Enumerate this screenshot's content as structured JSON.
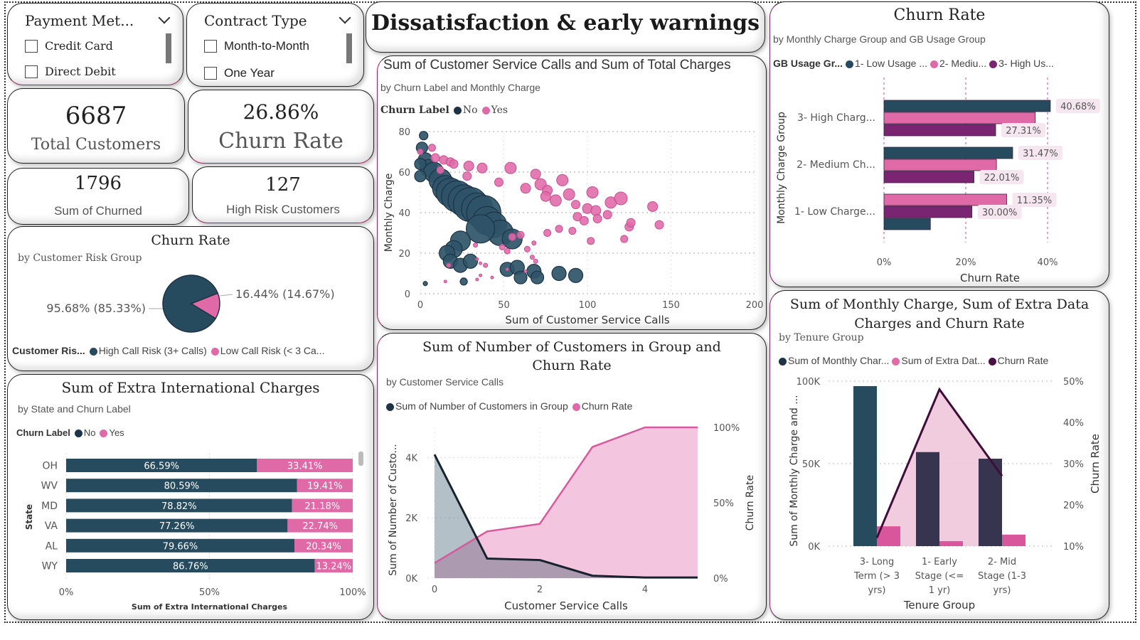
{
  "header": {
    "title": "Dissatisfaction & early warnings"
  },
  "colors": {
    "no": "#274b5e",
    "yes": "#e06aa8",
    "high": "#7a2472",
    "dark": "#1e3345",
    "accent": "#a0245e"
  },
  "slicers": [
    {
      "title": "Payment Met...",
      "items": [
        "Credit Card",
        "Direct Debit"
      ]
    },
    {
      "title": "Contract Type",
      "items": [
        "Month-to-Month",
        "One Year"
      ]
    }
  ],
  "kpis": {
    "total_customers": {
      "value": "6687",
      "label": "Total Customers"
    },
    "churn_rate": {
      "value": "26.86%",
      "label": "Churn Rate"
    },
    "sum_churned": {
      "value": "1796",
      "label": "Sum of Churned"
    },
    "high_risk": {
      "value": "127",
      "label": "High Risk Customers"
    }
  },
  "pie": {
    "title": "Churn Rate",
    "subtitle": "by Customer Risk Group",
    "legend_title": "Customer Ris...",
    "legend": [
      "High Call Risk (3+ Calls)",
      "Low Call Risk (< 3 Ca..."
    ],
    "label_left": "95.68% (85.33%)",
    "label_right": "16.44% (14.67%)"
  },
  "scatter": {
    "title": "Sum of Customer Service Calls and Sum of Total Charges",
    "subtitle": "by Churn Label and Monthly Charge",
    "legend_title": "Churn Label",
    "legend": [
      "No",
      "Yes"
    ],
    "xlabel": "Sum of Customer Service Calls",
    "ylabel": "Monthly Charge",
    "xticks": [
      "0",
      "50",
      "100",
      "150",
      "200"
    ],
    "yticks": [
      "0",
      "20",
      "40",
      "60",
      "80"
    ]
  },
  "state_bar": {
    "title": "Sum of Extra International Charges",
    "subtitle": "by State and Churn Label",
    "legend_title": "Churn Label",
    "legend": [
      "No",
      "Yes"
    ],
    "ylabel": "State",
    "xlabel": "Sum of Extra International Charges",
    "xticks": [
      "0%",
      "50%",
      "100%"
    ]
  },
  "line_area": {
    "title": "Sum of Number of Customers in Group and Churn Rate",
    "subtitle": "by Customer Service Calls",
    "legend": [
      "Sum of Number of Customers in Group",
      "Churn Rate"
    ],
    "xlabel": "Customer Service Calls",
    "ylabel": "Sum of Number of Custo...",
    "y2label": "Churn Rate",
    "xticks": [
      "0",
      "2",
      "4"
    ],
    "yticks": [
      "0K",
      "2K",
      "4K"
    ],
    "y2ticks": [
      "0%",
      "50%",
      "100%"
    ]
  },
  "group_bar": {
    "title": "Churn Rate",
    "subtitle": "by Monthly Charge Group and GB Usage Group",
    "legend_title": "GB Usage Gr...",
    "legend": [
      "1- Low Usage ...",
      "2- Mediu...",
      "3- High Us..."
    ],
    "ylabel": "Monthly Charge Group",
    "xlabel": "Churn Rate",
    "xticks": [
      "0%",
      "20%",
      "40%"
    ]
  },
  "combo": {
    "title": "Sum of Monthly Charge, Sum of Extra Data Charges and Churn Rate",
    "subtitle": "by Tenure Group",
    "legend": [
      "Sum of Monthly Char...",
      "Sum of Extra Dat...",
      "Churn Rate"
    ],
    "xlabel": "Tenure Group",
    "ylabel": "Sum of Monthly Charge and ...",
    "y2label": "Churn Rate",
    "yticks": [
      "0K",
      "50K",
      "100K"
    ],
    "y2ticks": [
      "10%",
      "20%",
      "30%",
      "40%",
      "50%"
    ]
  },
  "chart_data": [
    {
      "type": "pie",
      "title": "Churn Rate",
      "subtitle": "by Customer Risk Group",
      "categories": [
        "High Call Risk (3+ Calls)",
        "Low Call Risk (< 3 Calls)"
      ],
      "values": [
        95.68,
        16.44
      ],
      "share_percent": [
        85.33,
        14.67
      ],
      "legend_position": "bottom"
    },
    {
      "type": "scatter",
      "title": "Sum of Customer Service Calls and Sum of Total Charges",
      "xlabel": "Sum of Customer Service Calls",
      "ylabel": "Monthly Charge",
      "xlim": [
        0,
        200
      ],
      "ylim": [
        0,
        80
      ],
      "series": [
        {
          "name": "No",
          "points": [
            [
              2,
              78,
              6
            ],
            [
              1,
              72,
              8
            ],
            [
              3,
              66,
              10
            ],
            [
              5,
              62,
              12
            ],
            [
              8,
              60,
              14
            ],
            [
              12,
              56,
              16
            ],
            [
              15,
              52,
              18
            ],
            [
              18,
              50,
              20
            ],
            [
              22,
              48,
              22
            ],
            [
              26,
              46,
              22
            ],
            [
              30,
              44,
              24
            ],
            [
              34,
              42,
              22
            ],
            [
              38,
              40,
              24
            ],
            [
              40,
              36,
              20
            ],
            [
              44,
              34,
              18
            ],
            [
              48,
              30,
              18
            ],
            [
              55,
              27,
              14
            ],
            [
              36,
              32,
              20
            ],
            [
              24,
              26,
              14
            ],
            [
              20,
              22,
              12
            ],
            [
              16,
              20,
              11
            ],
            [
              18,
              16,
              10
            ],
            [
              24,
              14,
              10
            ],
            [
              30,
              16,
              10
            ],
            [
              52,
              12,
              10
            ],
            [
              58,
              13,
              10
            ],
            [
              60,
              8,
              9
            ],
            [
              68,
              11,
              10
            ],
            [
              70,
              8,
              9
            ],
            [
              83,
              10,
              10
            ],
            [
              93,
              9,
              10
            ],
            [
              26,
              6,
              5
            ],
            [
              3,
              5,
              3
            ],
            [
              0,
              64,
              8
            ],
            [
              0,
              58,
              8
            ]
          ]
        },
        {
          "name": "Yes",
          "points": [
            [
              0,
              70,
              4
            ],
            [
              7,
              72,
              5
            ],
            [
              9,
              67,
              6
            ],
            [
              14,
              66,
              6
            ],
            [
              18,
              65,
              6
            ],
            [
              20,
              64,
              6
            ],
            [
              12,
              61,
              5
            ],
            [
              29,
              63,
              7
            ],
            [
              37,
              62,
              7
            ],
            [
              28,
              58,
              6
            ],
            [
              54,
              62,
              8
            ],
            [
              47,
              55,
              6
            ],
            [
              63,
              52,
              7
            ],
            [
              69,
              59,
              7
            ],
            [
              72,
              54,
              8
            ],
            [
              76,
              51,
              7
            ],
            [
              75,
              48,
              7
            ],
            [
              81,
              46,
              8
            ],
            [
              85,
              56,
              8
            ],
            [
              89,
              49,
              8
            ],
            [
              93,
              44,
              6
            ],
            [
              94,
              38,
              6
            ],
            [
              98,
              36,
              6
            ],
            [
              100,
              42,
              7
            ],
            [
              105,
              41,
              7
            ],
            [
              103,
              50,
              8
            ],
            [
              106,
              37,
              6
            ],
            [
              112,
              39,
              6
            ],
            [
              114,
              45,
              8
            ],
            [
              120,
              47,
              9
            ],
            [
              122,
              27,
              5
            ],
            [
              125,
              33,
              6
            ],
            [
              126,
              35,
              6
            ],
            [
              139,
              43,
              7
            ],
            [
              143,
              34,
              6
            ],
            [
              102,
              26,
              5
            ],
            [
              91,
              31,
              5
            ],
            [
              83,
              32,
              5
            ],
            [
              76,
              30,
              5
            ],
            [
              60,
              29,
              5
            ],
            [
              55,
              28,
              5
            ],
            [
              49,
              23,
              4
            ],
            [
              52,
              21,
              4
            ],
            [
              64,
              22,
              4
            ],
            [
              68,
              25,
              3
            ],
            [
              67,
              18,
              3
            ],
            [
              69,
              16,
              3
            ],
            [
              39,
              14,
              3
            ],
            [
              34,
              17,
              2
            ],
            [
              36,
              15,
              2
            ],
            [
              43,
              8,
              2
            ],
            [
              36,
              9,
              2
            ],
            [
              34,
              7,
              2
            ],
            [
              15,
              6,
              2
            ],
            [
              17,
              14,
              3
            ],
            [
              52,
              12,
              2
            ],
            [
              63,
              11,
              2
            ],
            [
              33,
              24,
              3
            ]
          ]
        }
      ],
      "legend_position": "top-left"
    },
    {
      "type": "bar",
      "orientation": "horizontal-stacked-100",
      "title": "Sum of Extra International Charges",
      "subtitle": "by State and Churn Label",
      "categories": [
        "OH",
        "WV",
        "MD",
        "VA",
        "AL",
        "WY"
      ],
      "series": [
        {
          "name": "No",
          "values": [
            66.59,
            80.59,
            78.82,
            77.26,
            79.66,
            86.76
          ]
        },
        {
          "name": "Yes",
          "values": [
            33.41,
            19.41,
            21.18,
            22.74,
            20.34,
            13.24
          ]
        }
      ],
      "xlabel": "Sum of Extra International Charges",
      "ylabel": "State",
      "xlim": [
        0,
        100
      ],
      "legend_position": "top-left"
    },
    {
      "type": "area",
      "title": "Sum of Number of Customers in Group and Churn Rate",
      "subtitle": "by Customer Service Calls",
      "x": [
        0,
        1,
        2,
        3,
        4,
        5
      ],
      "series": [
        {
          "name": "Sum of Number of Customers in Group",
          "axis": "left",
          "values": [
            4100,
            650,
            600,
            80,
            20,
            20
          ]
        },
        {
          "name": "Churn Rate",
          "axis": "right",
          "values": [
            10,
            31,
            36,
            87,
            100,
            100
          ]
        }
      ],
      "xlabel": "Customer Service Calls",
      "ylabel": "Sum of Number of Customers in Group",
      "y2label": "Churn Rate",
      "ylim": [
        0,
        5000
      ],
      "y2lim": [
        0,
        100
      ],
      "legend_position": "top-left"
    },
    {
      "type": "bar",
      "orientation": "horizontal-grouped",
      "title": "Churn Rate",
      "subtitle": "by Monthly Charge Group and GB Usage Group",
      "categories": [
        "3- High Charg...",
        "2- Medium Ch...",
        "1- Low Charge..."
      ],
      "series": [
        {
          "name": "1- Low Usage",
          "values": [
            40.68,
            31.47,
            11.35
          ]
        },
        {
          "name": "2- Medium Usage",
          "values": [
            37.0,
            27.5,
            30.0
          ]
        },
        {
          "name": "3- High Usage",
          "values": [
            27.31,
            22.01,
            21.5
          ]
        }
      ],
      "bar_order": [
        [
          "1- Low Usage",
          "2- Medium Usage",
          "3- High Usage"
        ],
        [
          "1- Low Usage",
          "2- Medium Usage",
          "3- High Usage"
        ],
        [
          "2- Medium Usage",
          "3- High Usage",
          "1- Low Usage"
        ]
      ],
      "data_labels": [
        [
          "40.68%",
          null,
          "27.31%"
        ],
        [
          "31.47%",
          null,
          "22.01%"
        ],
        [
          "11.35%",
          "30.00%",
          null
        ]
      ],
      "xlabel": "Churn Rate",
      "ylabel": "Monthly Charge Group",
      "xlim": [
        0,
        48
      ],
      "legend_position": "top-left"
    },
    {
      "type": "bar",
      "orientation": "vertical-combo",
      "title": "Sum of Monthly Charge, Sum of Extra Data Charges and Churn Rate",
      "subtitle": "by Tenure Group",
      "categories": [
        "3- Long Term (> 3 yrs)",
        "1- Early Stage (<= 1 yr)",
        "2- Mid Stage (1-3 yrs)"
      ],
      "series": [
        {
          "name": "Sum of Monthly Charge",
          "axis": "left",
          "values": [
            97000,
            57000,
            53000
          ]
        },
        {
          "name": "Sum of Extra Data Charges",
          "axis": "left",
          "values": [
            12000,
            3000,
            7000
          ]
        },
        {
          "name": "Churn Rate",
          "axis": "right",
          "kind": "line",
          "values": [
            12,
            48,
            27
          ]
        }
      ],
      "xlabel": "Tenure Group",
      "ylabel": "Sum of Monthly Charge and ...",
      "y2label": "Churn Rate",
      "ylim": [
        0,
        100000
      ],
      "y2lim": [
        10,
        50
      ],
      "legend_position": "top-left"
    }
  ]
}
